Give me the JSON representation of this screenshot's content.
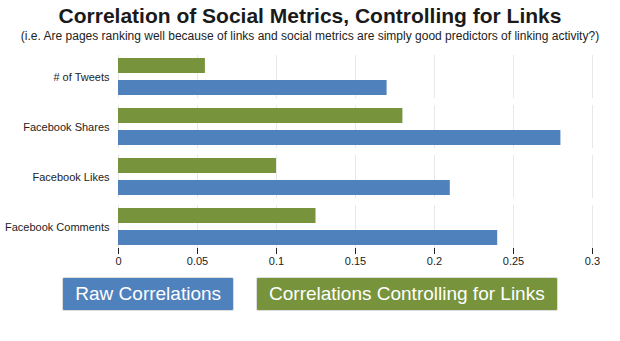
{
  "chart_data": {
    "type": "bar",
    "orientation": "horizontal",
    "title": "Correlation of Social Metrics, Controlling for Links",
    "subtitle": "(i.e. Are pages ranking well because of links and social metrics are simply good predictors of linking activity?)",
    "categories": [
      "# of Tweets",
      "Facebook Shares",
      "Facebook Likes",
      "Facebook Comments"
    ],
    "series": [
      {
        "name": "Raw Correlations",
        "color": "#4f81bd",
        "values": [
          0.17,
          0.28,
          0.21,
          0.24
        ]
      },
      {
        "name": "Correlations Controlling for Links",
        "color": "#77933c",
        "values": [
          0.055,
          0.18,
          0.1,
          0.125
        ]
      }
    ],
    "xlim": [
      0,
      0.3
    ],
    "xticks": [
      0,
      0.05,
      0.1,
      0.15,
      0.2,
      0.25,
      0.3
    ],
    "grid": true,
    "legend": "bottom"
  }
}
